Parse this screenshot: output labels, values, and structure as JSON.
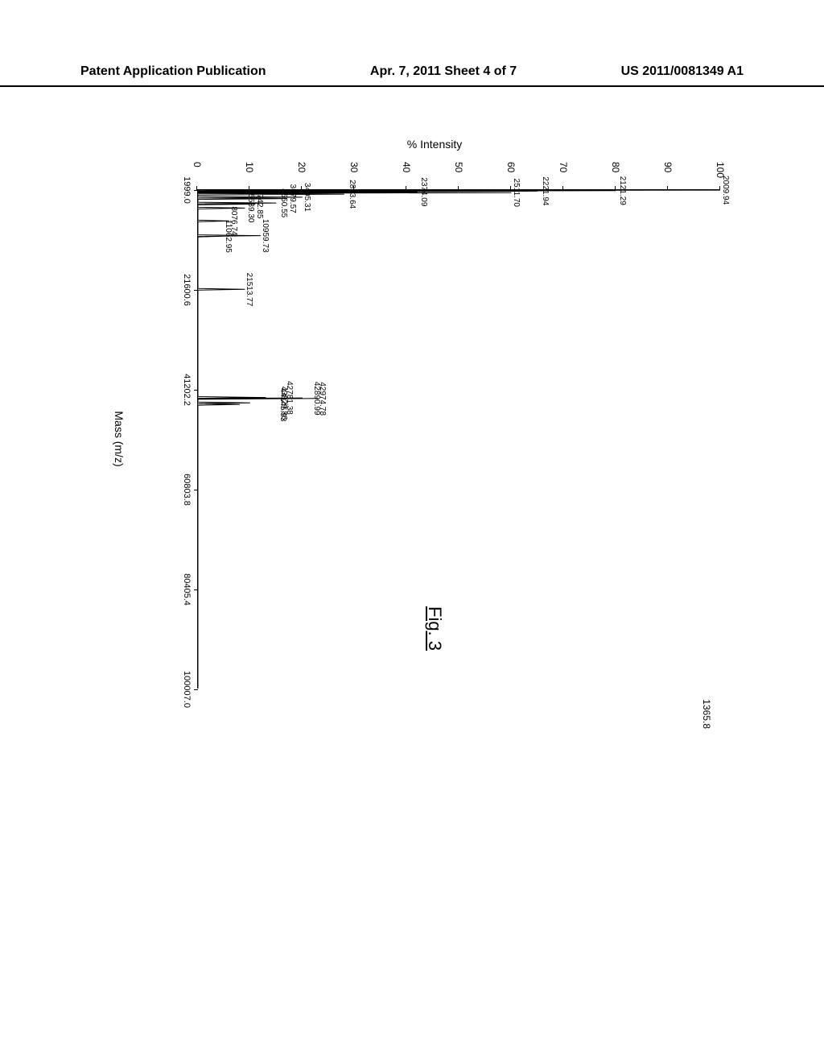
{
  "header": {
    "left": "Patent Application Publication",
    "center": "Apr. 7, 2011  Sheet 4 of 7",
    "right": "US 2011/0081349 A1"
  },
  "figure_label": "Fig. 3",
  "chart": {
    "type": "mass-spectrum",
    "y_axis_label": "% Intensity",
    "x_axis_label": "Mass (m/z)",
    "right_top_label": "1365.8",
    "xlim": [
      1999.0,
      100007.0
    ],
    "ylim": [
      0,
      100
    ],
    "y_ticks": [
      0,
      10,
      20,
      30,
      40,
      50,
      60,
      70,
      80,
      90,
      100
    ],
    "x_ticks": [
      {
        "value": 1999.0,
        "label": "1999.0"
      },
      {
        "value": 21600.6,
        "label": "21600.6"
      },
      {
        "value": 41202.2,
        "label": "41202.2"
      },
      {
        "value": 60803.8,
        "label": "60803.8"
      },
      {
        "value": 80405.4,
        "label": "80405.4"
      },
      {
        "value": 100007.0,
        "label": "100007.0"
      }
    ],
    "peak_labels": [
      {
        "mz": 2009.94,
        "intensity": 100,
        "label": "2009.94"
      },
      {
        "mz": 2121.29,
        "intensity": 80,
        "label": "2121.29"
      },
      {
        "mz": 2221.94,
        "intensity": 65,
        "label": "2221.94"
      },
      {
        "mz": 2511.7,
        "intensity": 60,
        "label": "2511.70"
      },
      {
        "mz": 2374.09,
        "intensity": 42,
        "label": "2374.09"
      },
      {
        "mz": 2813.64,
        "intensity": 28,
        "label": "2813.64"
      },
      {
        "mz": 3405.31,
        "intensity": 20,
        "label": "3405.31"
      },
      {
        "mz": 3679.57,
        "intensity": 17,
        "label": "3679.57"
      },
      {
        "mz": 4550.55,
        "intensity": 15,
        "label": "4550.55"
      },
      {
        "mz": 4742.85,
        "intensity": 11,
        "label": "4742.85"
      },
      {
        "mz": 5539.3,
        "intensity": 9,
        "label": "5539.30"
      },
      {
        "mz": 8076.74,
        "intensity": 6,
        "label": "8076.74"
      },
      {
        "mz": 10959.73,
        "intensity": 12,
        "label": "10959.73"
      },
      {
        "mz": 11062.95,
        "intensity": 5,
        "label": "11062.95"
      },
      {
        "mz": 21513.77,
        "intensity": 9,
        "label": "21513.77"
      },
      {
        "mz": 42974.78,
        "intensity": 23,
        "label": "42974.78"
      },
      {
        "mz": 42890.99,
        "intensity": 20,
        "label": "42890.99"
      },
      {
        "mz": 42781.38,
        "intensity": 13,
        "label": "42781.38"
      },
      {
        "mz": 43829.86,
        "intensity": 10,
        "label": "43829.86"
      },
      {
        "mz": 44145.93,
        "intensity": 8,
        "label": "44145.93"
      }
    ],
    "spectrum_path_color": "#000000",
    "background_color": "#ffffff",
    "line_width": 1,
    "label_fontsize": 10,
    "axis_fontsize": 14,
    "tick_fontsize": 12
  }
}
